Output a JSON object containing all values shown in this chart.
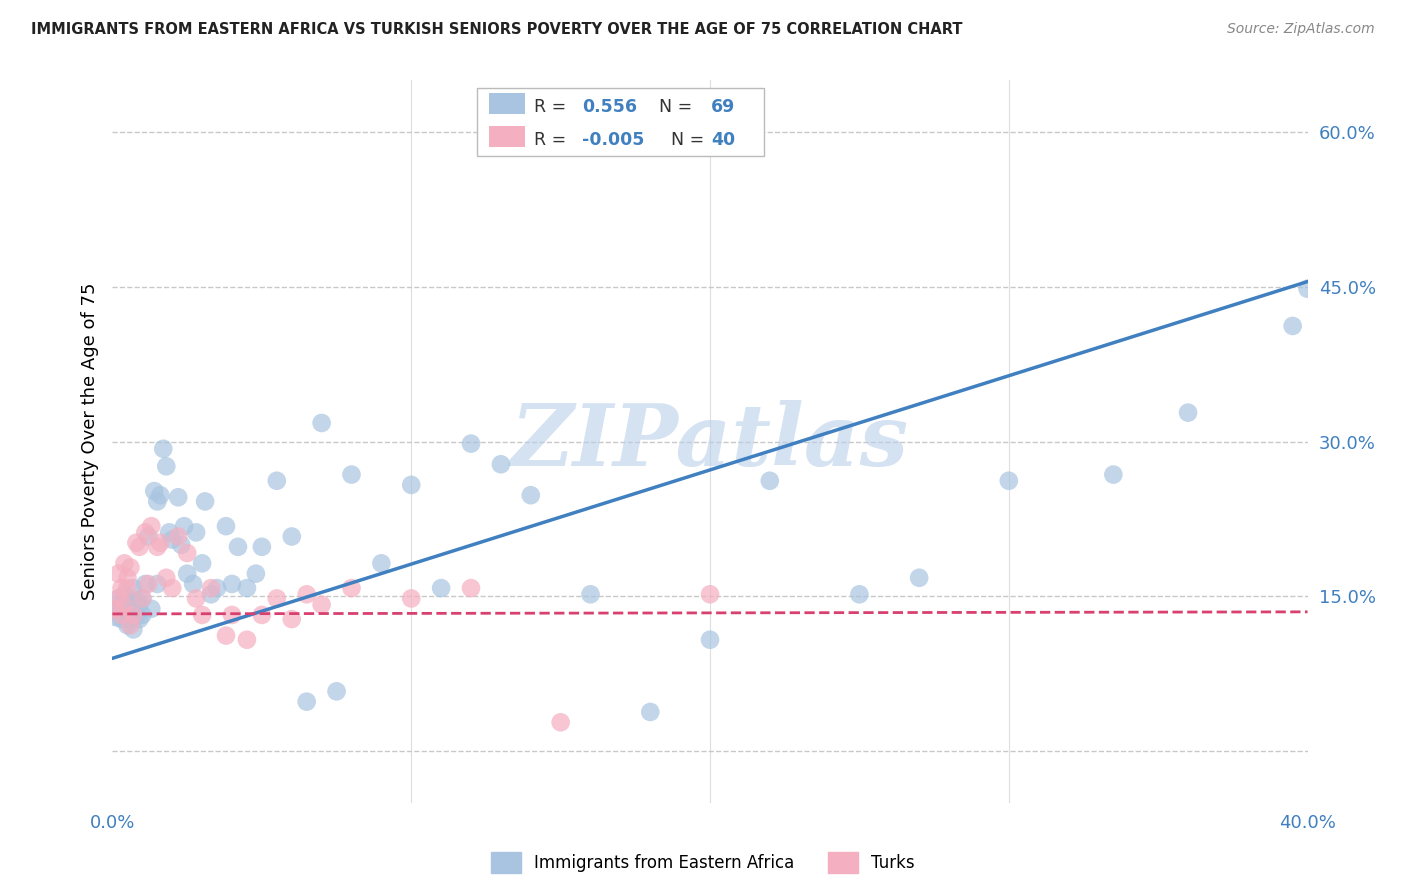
{
  "title": "IMMIGRANTS FROM EASTERN AFRICA VS TURKISH SENIORS POVERTY OVER THE AGE OF 75 CORRELATION CHART",
  "source": "Source: ZipAtlas.com",
  "ylabel": "Seniors Poverty Over the Age of 75",
  "xlim": [
    0.0,
    0.4
  ],
  "ylim": [
    -0.05,
    0.65
  ],
  "yticks": [
    0.0,
    0.15,
    0.3,
    0.45,
    0.6
  ],
  "ytick_labels": [
    "",
    "15.0%",
    "30.0%",
    "45.0%",
    "60.0%"
  ],
  "grid_color": "#c8c8c8",
  "background_color": "#ffffff",
  "watermark": "ZIPatlas",
  "watermark_color": "#b8cfe8",
  "blue_color": "#a8c4e0",
  "pink_color": "#f4afc0",
  "blue_line_color": "#4080c0",
  "pink_line_color": "#d84070",
  "R_blue": "0.556",
  "N_blue": "69",
  "R_pink": "-0.005",
  "N_pink": "40",
  "legend_label_blue": "Immigrants from Eastern Africa",
  "legend_label_pink": "Turks",
  "blue_scatter_x": [
    0.001,
    0.002,
    0.002,
    0.003,
    0.003,
    0.004,
    0.004,
    0.005,
    0.005,
    0.006,
    0.006,
    0.007,
    0.007,
    0.008,
    0.008,
    0.009,
    0.009,
    0.01,
    0.01,
    0.011,
    0.012,
    0.013,
    0.014,
    0.015,
    0.015,
    0.016,
    0.017,
    0.018,
    0.019,
    0.02,
    0.022,
    0.023,
    0.024,
    0.025,
    0.027,
    0.028,
    0.03,
    0.031,
    0.033,
    0.035,
    0.038,
    0.04,
    0.042,
    0.045,
    0.048,
    0.05,
    0.055,
    0.06,
    0.065,
    0.07,
    0.075,
    0.08,
    0.09,
    0.1,
    0.11,
    0.12,
    0.13,
    0.14,
    0.16,
    0.18,
    0.2,
    0.22,
    0.25,
    0.27,
    0.3,
    0.335,
    0.36,
    0.395,
    0.4
  ],
  "blue_scatter_y": [
    0.13,
    0.138,
    0.148,
    0.128,
    0.143,
    0.138,
    0.152,
    0.122,
    0.148,
    0.128,
    0.143,
    0.118,
    0.158,
    0.132,
    0.146,
    0.128,
    0.143,
    0.148,
    0.132,
    0.162,
    0.208,
    0.138,
    0.252,
    0.162,
    0.242,
    0.248,
    0.293,
    0.276,
    0.212,
    0.205,
    0.246,
    0.2,
    0.218,
    0.172,
    0.162,
    0.212,
    0.182,
    0.242,
    0.152,
    0.158,
    0.218,
    0.162,
    0.198,
    0.158,
    0.172,
    0.198,
    0.262,
    0.208,
    0.048,
    0.318,
    0.058,
    0.268,
    0.182,
    0.258,
    0.158,
    0.298,
    0.278,
    0.248,
    0.152,
    0.038,
    0.108,
    0.262,
    0.152,
    0.168,
    0.262,
    0.268,
    0.328,
    0.412,
    0.448
  ],
  "pink_scatter_x": [
    0.001,
    0.002,
    0.002,
    0.003,
    0.003,
    0.004,
    0.004,
    0.005,
    0.005,
    0.006,
    0.006,
    0.007,
    0.008,
    0.009,
    0.01,
    0.011,
    0.012,
    0.013,
    0.015,
    0.016,
    0.018,
    0.02,
    0.022,
    0.025,
    0.028,
    0.03,
    0.033,
    0.038,
    0.04,
    0.045,
    0.05,
    0.055,
    0.06,
    0.065,
    0.07,
    0.08,
    0.1,
    0.12,
    0.15,
    0.2
  ],
  "pink_scatter_y": [
    0.138,
    0.148,
    0.172,
    0.132,
    0.158,
    0.142,
    0.182,
    0.168,
    0.158,
    0.122,
    0.178,
    0.132,
    0.202,
    0.198,
    0.148,
    0.212,
    0.162,
    0.218,
    0.198,
    0.202,
    0.168,
    0.158,
    0.208,
    0.192,
    0.148,
    0.132,
    0.158,
    0.112,
    0.132,
    0.108,
    0.132,
    0.148,
    0.128,
    0.152,
    0.142,
    0.158,
    0.148,
    0.158,
    0.028,
    0.152
  ]
}
